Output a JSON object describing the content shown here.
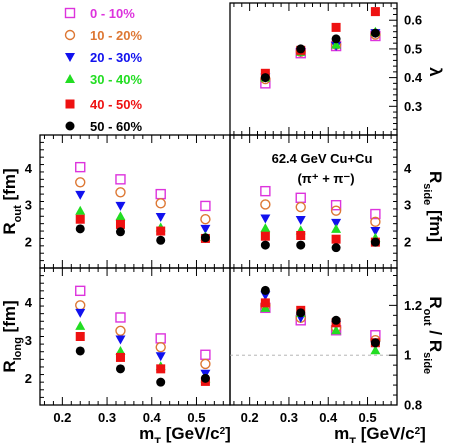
{
  "legend": [
    {
      "label": "0 - 10%",
      "color": "#dd33dd",
      "marker": "square-open"
    },
    {
      "label": "10 - 20%",
      "color": "#dd7733",
      "marker": "circle-open"
    },
    {
      "label": "20 - 30%",
      "color": "#1111ee",
      "marker": "triangle-down"
    },
    {
      "label": "30 - 40%",
      "color": "#22dd22",
      "marker": "triangle-up"
    },
    {
      "label": "40 - 50%",
      "color": "#ee1111",
      "marker": "square"
    },
    {
      "label": "50 - 60%",
      "color": "#000000",
      "marker": "circle"
    }
  ],
  "annotation": {
    "line1": "62.4 GeV Cu+Cu",
    "line2": "(π⁺ + π⁻)"
  },
  "chart_data": [
    {
      "id": "lambda",
      "type": "scatter",
      "panel": "top-right",
      "ylabel": "λ",
      "ylim": [
        0.2,
        0.66
      ],
      "yticks": [
        0.3,
        0.4,
        0.5,
        0.6
      ],
      "ytick_labels": [
        "0.3",
        "0.4",
        "0.5",
        "0.6"
      ],
      "xlim": [
        0.15,
        0.575
      ],
      "x": [
        0.24,
        0.33,
        0.42,
        0.52
      ],
      "series": [
        {
          "values": [
            0.38,
            0.485,
            0.51,
            0.545
          ]
        },
        {
          "values": [
            0.395,
            0.49,
            0.515,
            0.55
          ]
        },
        {
          "values": [
            0.4,
            0.49,
            0.51,
            0.555
          ]
        },
        {
          "values": [
            0.4,
            0.49,
            0.515,
            0.56
          ]
        },
        {
          "values": [
            0.415,
            0.495,
            0.575,
            0.63
          ]
        },
        {
          "values": [
            0.4,
            0.5,
            0.535,
            0.555
          ]
        }
      ]
    },
    {
      "id": "rout",
      "type": "scatter",
      "panel": "middle-left",
      "ylabel": "R",
      "ylabel_sub": "out",
      "ylabel_unit": " [fm]",
      "ylim": [
        1.3,
        4.9
      ],
      "yticks": [
        2,
        3,
        4
      ],
      "ytick_labels": [
        "2",
        "3",
        "4"
      ],
      "xlim": [
        0.15,
        0.575
      ],
      "x": [
        0.24,
        0.33,
        0.42,
        0.52
      ],
      "series": [
        {
          "values": [
            4.03,
            3.7,
            3.3,
            2.98
          ]
        },
        {
          "values": [
            3.62,
            3.35,
            3.05,
            2.62
          ]
        },
        {
          "values": [
            3.28,
            2.98,
            2.68,
            2.36
          ]
        },
        {
          "values": [
            2.85,
            2.7,
            2.4,
            2.15
          ]
        },
        {
          "values": [
            2.62,
            2.48,
            2.3,
            2.1
          ]
        },
        {
          "values": [
            2.36,
            2.28,
            2.05,
            2.12
          ]
        }
      ]
    },
    {
      "id": "rside",
      "type": "scatter",
      "panel": "middle-right",
      "ylabel": "R",
      "ylabel_sub": "side",
      "ylabel_unit": " [fm]",
      "ylim": [
        1.3,
        4.9
      ],
      "yticks": [
        2,
        3,
        4
      ],
      "ytick_labels": [
        "2",
        "3",
        "4"
      ],
      "xlim": [
        0.15,
        0.575
      ],
      "x": [
        0.24,
        0.33,
        0.42,
        0.52
      ],
      "series": [
        {
          "values": [
            3.38,
            3.2,
            3.0,
            2.76
          ]
        },
        {
          "values": [
            3.02,
            2.95,
            2.85,
            2.55
          ]
        },
        {
          "values": [
            2.64,
            2.6,
            2.52,
            2.3
          ]
        },
        {
          "values": [
            2.38,
            2.32,
            2.36,
            2.12
          ]
        },
        {
          "values": [
            2.16,
            2.18,
            2.08,
            2.0
          ]
        },
        {
          "values": [
            1.92,
            1.92,
            1.85,
            2.0
          ]
        }
      ]
    },
    {
      "id": "rlong",
      "type": "scatter",
      "panel": "bottom-left",
      "ylabel": "R",
      "ylabel_sub": "long",
      "ylabel_unit": " [fm]",
      "ylim": [
        1.3,
        4.9
      ],
      "yticks": [
        2,
        3,
        4
      ],
      "ytick_labels": [
        "2",
        "3",
        "4"
      ],
      "xlim": [
        0.15,
        0.575
      ],
      "x": [
        0.24,
        0.33,
        0.42,
        0.52
      ],
      "xticks": [
        0.2,
        0.3,
        0.4,
        0.5
      ],
      "xtick_labels": [
        "0.2",
        "0.3",
        "0.4",
        "0.5"
      ],
      "xlabel": "m",
      "xlabel_sub": "T",
      "xlabel_unit": " [GeV/c",
      "xlabel_sup": "2",
      "xlabel_end": "]",
      "series": [
        {
          "values": [
            4.3,
            3.6,
            3.05,
            2.62
          ]
        },
        {
          "values": [
            3.92,
            3.25,
            2.82,
            2.38
          ]
        },
        {
          "values": [
            3.72,
            3.02,
            2.58,
            2.12
          ]
        },
        {
          "values": [
            3.38,
            2.72,
            2.32,
            2.0
          ]
        },
        {
          "values": [
            3.1,
            2.55,
            2.25,
            1.92
          ]
        },
        {
          "values": [
            2.72,
            2.25,
            1.9,
            2.0
          ]
        }
      ]
    },
    {
      "id": "ratio",
      "type": "scatter",
      "panel": "bottom-right",
      "ylabel": "R",
      "ylabel_sub": "out",
      "ylabel_mid": " / R",
      "ylabel_sub2": "side",
      "ylim": [
        0.8,
        1.35
      ],
      "yticks": [
        0.8,
        1.0,
        1.2
      ],
      "ytick_labels": [
        "0.8",
        "1",
        "1.2"
      ],
      "xlim": [
        0.15,
        0.575
      ],
      "x": [
        0.24,
        0.33,
        0.42,
        0.52
      ],
      "xticks": [
        0.2,
        0.3,
        0.4,
        0.5
      ],
      "xtick_labels": [
        "0.2",
        "0.3",
        "0.4",
        "0.5"
      ],
      "xlabel": "m",
      "xlabel_sub": "T",
      "xlabel_unit": " [GeV/c",
      "xlabel_sup": "2",
      "xlabel_end": "]",
      "reference_line": 1.0,
      "series": [
        {
          "values": [
            1.19,
            1.14,
            1.1,
            1.08
          ]
        },
        {
          "values": [
            1.2,
            1.15,
            1.11,
            1.06
          ]
        },
        {
          "values": [
            1.24,
            1.15,
            1.12,
            1.04
          ]
        },
        {
          "values": [
            1.19,
            1.17,
            1.1,
            1.02
          ]
        },
        {
          "values": [
            1.21,
            1.18,
            1.13,
            1.05
          ]
        },
        {
          "values": [
            1.26,
            1.17,
            1.14,
            1.05
          ]
        }
      ]
    }
  ]
}
